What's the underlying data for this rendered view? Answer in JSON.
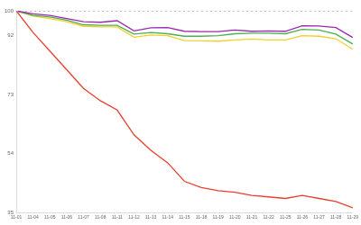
{
  "chart_data": {
    "type": "line",
    "categories": [
      "11-01",
      "11-04",
      "11-05",
      "11-06",
      "11-07",
      "11-08",
      "11-11",
      "11-12",
      "11-13",
      "11-14",
      "11-15",
      "11-18",
      "11-19",
      "11-20",
      "11-21",
      "11-22",
      "11-25",
      "11-26",
      "11-27",
      "11-28",
      "11-29"
    ],
    "series": [
      {
        "color": "#aaaaaa",
        "line_style": "dotted",
        "values": [
          100,
          100,
          100,
          100,
          100,
          100,
          100,
          100,
          100,
          100,
          100,
          100,
          100,
          100,
          100,
          100,
          100,
          100,
          100,
          100,
          100
        ]
      },
      {
        "color": "#9c27b0",
        "values": [
          100,
          99,
          98.5,
          97.5,
          96.5,
          96.3,
          96.8,
          93.5,
          94.5,
          94.6,
          93.4,
          93.3,
          93.3,
          93.8,
          93.4,
          93.5,
          93.4,
          95.2,
          95.1,
          94.6,
          91.4
        ]
      },
      {
        "color": "#4caf50",
        "values": [
          100,
          98.5,
          98,
          97,
          95.5,
          95.3,
          95.3,
          92.5,
          93,
          92.6,
          91.8,
          91.8,
          92,
          92.6,
          92.8,
          92.8,
          92.6,
          94,
          93.8,
          92.5,
          89.3
        ]
      },
      {
        "color": "#f2d02a",
        "values": [
          100,
          98.3,
          97.5,
          96.5,
          95,
          94.8,
          94.8,
          91.5,
          92.2,
          92,
          90.4,
          90.3,
          90.2,
          90.6,
          90.9,
          90.6,
          90.6,
          92,
          91.8,
          91,
          87.6
        ]
      },
      {
        "color": "#e8412e",
        "values": [
          100,
          93,
          87,
          81,
          75,
          71,
          68,
          60,
          55,
          51,
          45,
          43,
          42,
          41.5,
          40.5,
          40,
          39.5,
          40.5,
          39.5,
          38.5,
          36.5
        ]
      }
    ],
    "ylim": [
      35,
      100
    ],
    "yticks": [
      35,
      54,
      73,
      92,
      100
    ],
    "grid": false
  }
}
